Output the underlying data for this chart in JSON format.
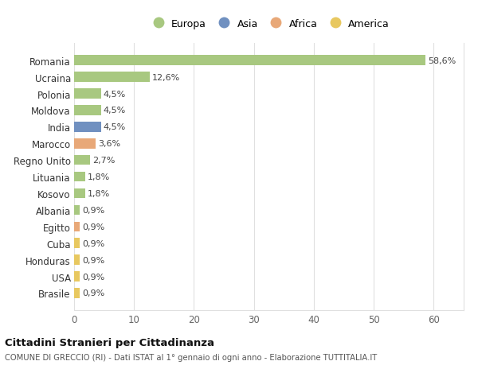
{
  "countries": [
    "Romania",
    "Ucraina",
    "Polonia",
    "Moldova",
    "India",
    "Marocco",
    "Regno Unito",
    "Lituania",
    "Kosovo",
    "Albania",
    "Egitto",
    "Cuba",
    "Honduras",
    "USA",
    "Brasile"
  ],
  "values": [
    58.6,
    12.6,
    4.5,
    4.5,
    4.5,
    3.6,
    2.7,
    1.8,
    1.8,
    0.9,
    0.9,
    0.9,
    0.9,
    0.9,
    0.9
  ],
  "labels": [
    "58,6%",
    "12,6%",
    "4,5%",
    "4,5%",
    "4,5%",
    "3,6%",
    "2,7%",
    "1,8%",
    "1,8%",
    "0,9%",
    "0,9%",
    "0,9%",
    "0,9%",
    "0,9%",
    "0,9%"
  ],
  "continents": [
    "Europa",
    "Europa",
    "Europa",
    "Europa",
    "Asia",
    "Africa",
    "Europa",
    "Europa",
    "Europa",
    "Europa",
    "Africa",
    "America",
    "America",
    "America",
    "America"
  ],
  "continent_colors": {
    "Europa": "#a8c880",
    "Asia": "#7090c0",
    "Africa": "#e8a878",
    "America": "#e8c860"
  },
  "legend_order": [
    "Europa",
    "Asia",
    "Africa",
    "America"
  ],
  "title": "Cittadini Stranieri per Cittadinanza",
  "subtitle": "COMUNE DI GRECCIO (RI) - Dati ISTAT al 1° gennaio di ogni anno - Elaborazione TUTTITALIA.IT",
  "xlim": [
    0,
    65
  ],
  "xticks": [
    0,
    10,
    20,
    30,
    40,
    50,
    60
  ],
  "bg_color": "#ffffff",
  "grid_color": "#e0e0e0",
  "bar_height": 0.6
}
